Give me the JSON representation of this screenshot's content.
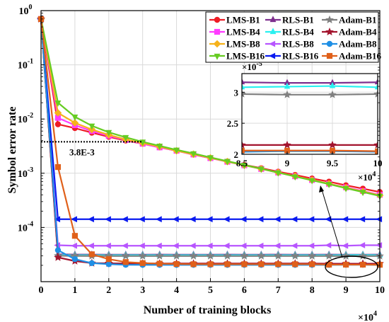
{
  "chart_data": {
    "type": "line",
    "xlabel": "Number of training blocks",
    "ylabel": "Symbol error rate",
    "x_multiplier_label": "×10",
    "x_multiplier_exp": "4",
    "xlim": [
      0,
      100000
    ],
    "ylim": [
      1e-05,
      1
    ],
    "yscale": "log",
    "grid": true,
    "legend_position": "top-right",
    "x_ticks": [
      0,
      10000,
      20000,
      30000,
      40000,
      50000,
      60000,
      70000,
      80000,
      90000,
      100000
    ],
    "x_tick_labels": [
      "0",
      "1",
      "2",
      "3",
      "4",
      "5",
      "6",
      "7",
      "8",
      "9",
      "10"
    ],
    "y_tick_exps": [
      "0",
      "-1",
      "-2",
      "-3",
      "-4"
    ],
    "x": [
      0,
      5000,
      10000,
      15000,
      20000,
      25000,
      30000,
      35000,
      40000,
      45000,
      50000,
      55000,
      60000,
      65000,
      70000,
      75000,
      80000,
      85000,
      90000,
      95000,
      100000
    ],
    "series": [
      {
        "name": "LMS-B1",
        "color": "#ee1c25",
        "marker": "circle",
        "values": [
          0.7,
          0.008,
          0.0068,
          0.0056,
          0.0047,
          0.004,
          0.0035,
          0.003,
          0.0026,
          0.0022,
          0.0019,
          0.00165,
          0.00143,
          0.00124,
          0.00107,
          0.00093,
          0.0008,
          0.0007,
          0.0006,
          0.00052,
          0.00045
        ]
      },
      {
        "name": "LMS-B4",
        "color": "#ff3cff",
        "marker": "square",
        "values": [
          0.7,
          0.0105,
          0.0077,
          0.006,
          0.0049,
          0.0041,
          0.0035,
          0.003,
          0.0026,
          0.00222,
          0.0019,
          0.00163,
          0.0014,
          0.0012,
          0.00103,
          0.00088,
          0.00075,
          0.00064,
          0.00055,
          0.00047,
          0.0004
        ]
      },
      {
        "name": "LMS-B8",
        "color": "#f6b21a",
        "marker": "diamond",
        "values": [
          0.7,
          0.013,
          0.0085,
          0.0064,
          0.0051,
          0.0042,
          0.0036,
          0.0031,
          0.0026,
          0.00225,
          0.00192,
          0.00164,
          0.0014,
          0.0012,
          0.00103,
          0.00088,
          0.00075,
          0.00064,
          0.00054,
          0.00046,
          0.00039
        ]
      },
      {
        "name": "LMS-B16",
        "color": "#66cc22",
        "marker": "triangle-down",
        "values": [
          0.7,
          0.02,
          0.011,
          0.0075,
          0.0057,
          0.0046,
          0.0038,
          0.0032,
          0.0027,
          0.00232,
          0.00196,
          0.00167,
          0.00142,
          0.00121,
          0.00103,
          0.00087,
          0.00074,
          0.00063,
          0.00053,
          0.00045,
          0.00038
        ]
      },
      {
        "name": "RLS-B1",
        "color": "#7e2f8e",
        "marker": "triangle-up",
        "values": [
          0.7,
          3.2e-05,
          3.16e-05,
          3.16e-05,
          3.15e-05,
          3.15e-05,
          3.15e-05,
          3.16e-05,
          3.15e-05,
          3.15e-05,
          3.15e-05,
          3.16e-05,
          3.15e-05,
          3.15e-05,
          3.16e-05,
          3.15e-05,
          3.15e-05,
          3.16e-05,
          3.15e-05,
          3.15e-05,
          3.16e-05
        ]
      },
      {
        "name": "RLS-B4",
        "color": "#2af0f0",
        "marker": "triangle-up",
        "values": [
          0.7,
          3.1e-05,
          3.08e-05,
          3.08e-05,
          3.08e-05,
          3.08e-05,
          3.08e-05,
          3.08e-05,
          3.08e-05,
          3.08e-05,
          3.08e-05,
          3.08e-05,
          3.08e-05,
          3.08e-05,
          3.08e-05,
          3.08e-05,
          3.08e-05,
          3.08e-05,
          3.09e-05,
          3.1e-05,
          3.08e-05
        ]
      },
      {
        "name": "RLS-B8",
        "color": "#b755ff",
        "marker": "triangle-left",
        "values": [
          0.7,
          4.7e-05,
          4.6e-05,
          4.6e-05,
          4.6e-05,
          4.6e-05,
          4.6e-05,
          4.6e-05,
          4.6e-05,
          4.6e-05,
          4.6e-05,
          4.6e-05,
          4.6e-05,
          4.6e-05,
          4.6e-05,
          4.6e-05,
          4.6e-05,
          4.7e-05,
          4.6e-05,
          4.7e-05,
          4.7e-05
        ]
      },
      {
        "name": "RLS-B16",
        "color": "#0a1bf0",
        "marker": "triangle-left",
        "values": [
          0.7,
          0.000142,
          0.000142,
          0.000142,
          0.000142,
          0.000142,
          0.000142,
          0.000142,
          0.000142,
          0.000142,
          0.000142,
          0.000142,
          0.000142,
          0.000142,
          0.000142,
          0.000142,
          0.000142,
          0.000142,
          0.000142,
          0.000142,
          0.000142
        ]
      },
      {
        "name": "Adam-B1",
        "color": "#808080",
        "marker": "star",
        "values": [
          0.7,
          3e-05,
          2.98e-05,
          2.97e-05,
          2.97e-05,
          2.97e-05,
          2.97e-05,
          2.97e-05,
          2.97e-05,
          2.97e-05,
          2.97e-05,
          2.97e-05,
          2.97e-05,
          2.97e-05,
          2.97e-05,
          2.97e-05,
          2.97e-05,
          2.97e-05,
          2.96e-05,
          2.96e-05,
          2.97e-05
        ]
      },
      {
        "name": "Adam-B4",
        "color": "#a3142e",
        "marker": "star",
        "values": [
          0.7,
          2.8e-05,
          2.4e-05,
          2.2e-05,
          2.18e-05,
          2.16e-05,
          2.16e-05,
          2.16e-05,
          2.16e-05,
          2.16e-05,
          2.16e-05,
          2.16e-05,
          2.16e-05,
          2.16e-05,
          2.16e-05,
          2.16e-05,
          2.16e-05,
          2.15e-05,
          2.15e-05,
          2.15e-05,
          2.15e-05
        ]
      },
      {
        "name": "Adam-B8",
        "color": "#1f8fe5",
        "marker": "circle",
        "values": [
          0.7,
          3.8e-05,
          2.6e-05,
          2.2e-05,
          2.1e-05,
          2.05e-05,
          2.04e-05,
          2.04e-05,
          2.04e-05,
          2.04e-05,
          2.04e-05,
          2.04e-05,
          2.04e-05,
          2.04e-05,
          2.04e-05,
          2.04e-05,
          2.04e-05,
          2.04e-05,
          2.05e-05,
          2.05e-05,
          2.04e-05
        ]
      },
      {
        "name": "Adam-B16",
        "color": "#e0601a",
        "marker": "square",
        "values": [
          0.7,
          0.0013,
          7e-05,
          3.2e-05,
          2.6e-05,
          2.3e-05,
          2.2e-05,
          2.15e-05,
          2.12e-05,
          2.1e-05,
          2.1e-05,
          2.1e-05,
          2.1e-05,
          2.1e-05,
          2.1e-05,
          2.1e-05,
          2.1e-05,
          2.06e-05,
          2.06e-05,
          2.06e-05,
          2.05e-05
        ]
      }
    ],
    "threshold": {
      "value": 0.0038,
      "label": "3.8E-3"
    },
    "inset": {
      "xlim": [
        85000,
        100000
      ],
      "ylim": [
        2e-05,
        3.3e-05
      ],
      "y_exp_label": "×10",
      "y_exp": "-5",
      "x_multiplier_label": "×10",
      "x_multiplier_exp": "4",
      "x_ticks": [
        85000,
        90000,
        95000,
        100000
      ],
      "x_tick_labels": [
        "8.5",
        "9",
        "9.5",
        "10"
      ],
      "y_ticks": [
        2e-05,
        2.5e-05,
        3e-05
      ],
      "y_tick_labels": [
        "2",
        "2.5",
        "3"
      ]
    }
  }
}
